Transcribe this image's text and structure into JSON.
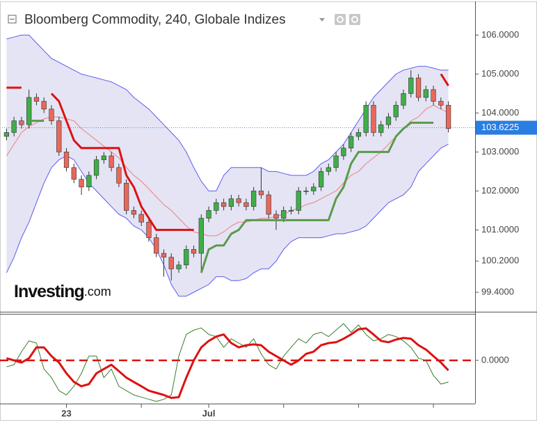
{
  "chart_data": {
    "type": "candlestick",
    "title": "Bloomberg Commodity, 240, Globale Indizes",
    "logo": "Investing",
    "logo_suffix": ".com",
    "xlim": [
      -0.5,
      59.5
    ],
    "xticks": [
      {
        "value": 8,
        "label": "23"
      },
      {
        "value": 18,
        "label": null
      },
      {
        "value": 27,
        "label": "Jul"
      },
      {
        "value": 37,
        "label": null
      },
      {
        "value": 47,
        "label": null
      },
      {
        "value": 57,
        "label": null
      }
    ],
    "ylim": [
      98.9,
      106.9
    ],
    "yticks": [
      {
        "value": 106,
        "label": "106.0000"
      },
      {
        "value": 105,
        "label": "105.0000"
      },
      {
        "value": 104,
        "label": "104.0000"
      },
      {
        "value": 103,
        "label": "103.0000"
      },
      {
        "value": 102,
        "label": "102.0000"
      },
      {
        "value": 101,
        "label": "101.0000"
      },
      {
        "value": 100.2,
        "label": "100.2000"
      },
      {
        "value": 99.4,
        "label": "99.4000"
      }
    ],
    "last": {
      "value": 103.6225,
      "label": "103.6225"
    },
    "up_color": "#3fae49",
    "down_color": "#e8685c",
    "open": [
      103.4,
      103.5,
      103.8,
      103.7,
      104.4,
      104.3,
      104.1,
      103.8,
      103.0,
      102.6,
      102.3,
      102.1,
      102.4,
      102.8,
      102.9,
      102.6,
      102.2,
      101.5,
      101.4,
      101.2,
      100.8,
      100.4,
      100.3,
      100.0,
      100.1,
      100.5,
      100.4,
      101.3,
      101.5,
      101.7,
      101.6,
      101.8,
      101.7,
      101.6,
      102.0,
      101.9,
      101.4,
      101.3,
      101.5,
      101.5,
      102.0,
      102.0,
      102.1,
      102.5,
      102.6,
      102.9,
      103.1,
      103.4,
      103.5,
      104.2,
      103.5,
      103.7,
      103.9,
      104.2,
      104.5,
      104.9,
      104.4,
      104.6,
      104.3,
      104.2
    ],
    "high": [
      103.6,
      103.9,
      103.9,
      104.6,
      104.5,
      104.4,
      104.2,
      103.9,
      103.1,
      102.7,
      102.4,
      102.5,
      102.9,
      103.0,
      103.0,
      102.7,
      102.3,
      101.6,
      101.5,
      101.3,
      100.9,
      100.5,
      100.4,
      100.2,
      100.6,
      100.6,
      101.4,
      101.6,
      101.8,
      101.8,
      101.9,
      101.9,
      101.8,
      102.1,
      102.6,
      102.0,
      101.5,
      101.6,
      101.6,
      102.1,
      102.1,
      102.2,
      102.6,
      102.7,
      103.0,
      103.2,
      103.5,
      103.6,
      104.3,
      104.3,
      103.8,
      104.0,
      104.3,
      104.6,
      105.1,
      105.0,
      104.7,
      104.7,
      104.4,
      104.3
    ],
    "low": [
      103.3,
      103.4,
      103.6,
      103.6,
      104.2,
      104.0,
      103.7,
      102.9,
      102.5,
      102.2,
      101.9,
      102.0,
      102.3,
      102.7,
      102.5,
      102.1,
      101.4,
      101.3,
      101.1,
      100.7,
      100.3,
      99.8,
      99.7,
      99.9,
      100.0,
      100.3,
      99.9,
      101.2,
      101.4,
      101.5,
      101.5,
      101.6,
      101.5,
      101.5,
      101.8,
      101.3,
      101.0,
      101.2,
      101.4,
      101.4,
      101.9,
      101.9,
      102.0,
      102.4,
      102.5,
      102.8,
      103.0,
      103.3,
      103.4,
      103.4,
      103.4,
      103.6,
      103.8,
      104.1,
      104.4,
      104.3,
      104.3,
      104.2,
      104.1,
      103.5
    ],
    "close": [
      103.5,
      103.8,
      103.7,
      104.4,
      104.3,
      104.1,
      103.8,
      103.0,
      102.6,
      102.3,
      102.1,
      102.4,
      102.8,
      102.9,
      102.6,
      102.2,
      101.5,
      101.4,
      101.2,
      100.8,
      100.4,
      100.3,
      100.0,
      100.1,
      100.5,
      100.4,
      101.3,
      101.5,
      101.7,
      101.6,
      101.8,
      101.7,
      101.6,
      102.0,
      101.9,
      101.4,
      101.3,
      101.5,
      101.5,
      102.0,
      102.0,
      102.1,
      102.5,
      102.6,
      102.9,
      103.1,
      103.4,
      103.5,
      104.2,
      103.5,
      103.7,
      103.9,
      104.2,
      104.5,
      104.9,
      104.4,
      104.6,
      104.3,
      104.2,
      103.6
    ],
    "bands": {
      "fill": "#e4e4f4",
      "color": "#5c5cf0",
      "upper": [
        105.9,
        105.95,
        106.0,
        106.0,
        105.8,
        105.6,
        105.4,
        105.3,
        105.2,
        105.1,
        105.0,
        104.95,
        104.9,
        104.85,
        104.8,
        104.7,
        104.6,
        104.4,
        104.25,
        104.1,
        103.9,
        103.7,
        103.5,
        103.3,
        103.0,
        102.6,
        102.25,
        102.0,
        102.0,
        102.4,
        102.6,
        102.6,
        102.6,
        102.6,
        102.6,
        102.5,
        102.5,
        102.45,
        102.4,
        102.4,
        102.4,
        102.5,
        102.7,
        102.8,
        103.0,
        103.2,
        103.5,
        103.8,
        104.1,
        104.4,
        104.6,
        104.8,
        105.0,
        105.1,
        105.15,
        105.2,
        105.2,
        105.15,
        105.1,
        105.1
      ],
      "lower": [
        99.9,
        100.3,
        100.8,
        101.2,
        101.7,
        102.2,
        102.6,
        102.8,
        102.9,
        102.8,
        102.5,
        102.2,
        102.0,
        101.8,
        101.6,
        101.4,
        101.3,
        101.1,
        101.0,
        100.8,
        100.5,
        100.1,
        99.6,
        99.3,
        99.3,
        99.4,
        99.5,
        99.6,
        99.8,
        99.8,
        99.7,
        99.7,
        99.75,
        99.9,
        100.0,
        100.0,
        100.2,
        100.5,
        100.7,
        100.8,
        100.8,
        100.8,
        100.8,
        100.85,
        100.9,
        100.9,
        100.95,
        101.0,
        101.1,
        101.3,
        101.5,
        101.7,
        101.8,
        101.9,
        102.1,
        102.5,
        102.7,
        102.9,
        103.1,
        103.2
      ]
    },
    "overlays": [
      {
        "color": "#ee8f8f",
        "width": 1.2,
        "values": [
          102.9,
          103.2,
          103.5,
          103.65,
          103.75,
          103.85,
          103.9,
          103.9,
          103.85,
          103.8,
          103.6,
          103.45,
          103.3,
          103.15,
          103.0,
          102.85,
          102.6,
          102.4,
          102.25,
          102.05,
          101.85,
          101.65,
          101.5,
          101.3,
          101.1,
          100.95,
          100.9,
          100.85,
          100.85,
          100.95,
          101.1,
          101.2,
          101.2,
          101.25,
          101.3,
          101.3,
          101.35,
          101.4,
          101.5,
          101.55,
          101.65,
          101.7,
          101.8,
          101.9,
          102.0,
          102.2,
          102.4,
          102.5,
          102.7,
          102.85,
          103.0,
          103.2,
          103.4,
          103.6,
          103.8,
          103.9,
          104.1,
          104.2,
          104.1,
          104.0
        ]
      },
      {
        "color": "#dd1111",
        "width": 3,
        "values": [
          104.65,
          104.65,
          104.65,
          null,
          null,
          null,
          104.5,
          104.3,
          103.8,
          103.3,
          103.1,
          103.1,
          103.1,
          103.1,
          103.1,
          103.1,
          102.4,
          102.1,
          101.6,
          101.3,
          101.0,
          101.0,
          101.0,
          101.0,
          101.0,
          101.0,
          null,
          null,
          null,
          null,
          null,
          null,
          null,
          null,
          null,
          null,
          null,
          null,
          null,
          null,
          null,
          null,
          null,
          null,
          null,
          null,
          null,
          null,
          null,
          null,
          null,
          null,
          null,
          null,
          null,
          null,
          null,
          null,
          105.0,
          104.7
        ]
      },
      {
        "color": "#5a9a4a",
        "width": 3,
        "values": [
          null,
          null,
          null,
          103.8,
          103.8,
          103.8,
          null,
          null,
          null,
          null,
          null,
          null,
          null,
          null,
          null,
          null,
          null,
          null,
          null,
          null,
          null,
          null,
          null,
          null,
          null,
          null,
          99.9,
          100.5,
          100.6,
          100.6,
          100.9,
          101.0,
          101.25,
          101.25,
          101.25,
          101.25,
          101.25,
          101.25,
          101.25,
          101.25,
          101.25,
          101.25,
          101.25,
          101.25,
          101.8,
          102.1,
          102.7,
          103.0,
          103.0,
          103.0,
          103.0,
          103.0,
          103.4,
          103.6,
          103.75,
          103.75,
          103.75,
          103.75,
          null,
          null
        ]
      }
    ],
    "oscillator": {
      "ylim": [
        -1,
        1.06
      ],
      "yticks": [
        {
          "value": 0,
          "label": "0.0000"
        }
      ],
      "zero_color": "#dd1111",
      "series": [
        {
          "color": "#3a7a2a",
          "width": 1,
          "values": [
            -0.15,
            -0.1,
            0.2,
            0.45,
            0.4,
            -0.2,
            -0.4,
            -0.7,
            -0.8,
            -0.6,
            -0.3,
            0.1,
            0.1,
            -0.4,
            -0.2,
            -0.6,
            -0.7,
            -0.8,
            -0.85,
            -0.9,
            -0.95,
            -0.9,
            -0.8,
            0.1,
            0.6,
            0.7,
            0.75,
            0.6,
            0.55,
            0.3,
            0.5,
            0.4,
            0.3,
            0.5,
            0.15,
            -0.1,
            -0.2,
            0.1,
            0.3,
            0.5,
            0.4,
            0.6,
            0.65,
            0.55,
            0.7,
            0.85,
            0.65,
            0.82,
            0.6,
            0.45,
            0.5,
            0.6,
            0.55,
            0.45,
            0.3,
            0.05,
            0.0,
            -0.35,
            -0.55,
            -0.5
          ]
        },
        {
          "color": "#dd1111",
          "width": 3,
          "values": [
            0.05,
            0.0,
            -0.05,
            0.05,
            0.3,
            0.3,
            0.1,
            -0.05,
            -0.3,
            -0.5,
            -0.6,
            -0.55,
            -0.3,
            -0.2,
            -0.1,
            -0.25,
            -0.4,
            -0.5,
            -0.6,
            -0.7,
            -0.75,
            -0.8,
            -0.87,
            -0.85,
            -0.4,
            0.0,
            0.3,
            0.45,
            0.55,
            0.6,
            0.4,
            0.3,
            0.35,
            0.37,
            0.35,
            0.2,
            0.1,
            0.0,
            -0.1,
            0.0,
            0.15,
            0.2,
            0.35,
            0.4,
            0.42,
            0.5,
            0.6,
            0.72,
            0.74,
            0.6,
            0.45,
            0.42,
            0.48,
            0.52,
            0.5,
            0.35,
            0.25,
            0.1,
            -0.05,
            -0.23
          ]
        }
      ]
    }
  }
}
